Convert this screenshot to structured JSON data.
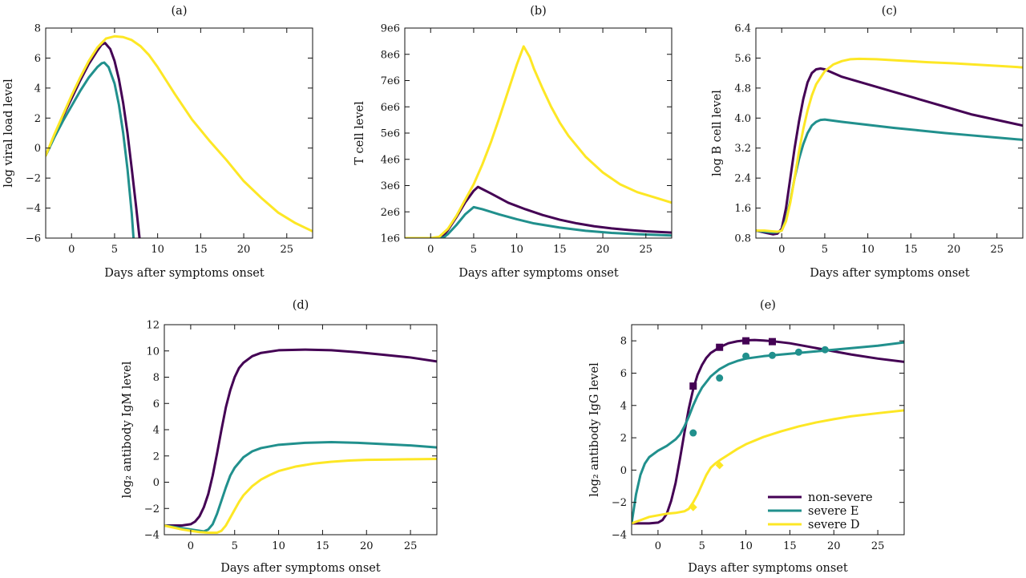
{
  "colors": {
    "non_severe": "#440154",
    "severe_E": "#21908d",
    "severe_D": "#fde725"
  },
  "chart_data": [
    {
      "id": "a",
      "type": "line",
      "title": "(a)",
      "xlabel": "Days after symptoms onset",
      "ylabel": "log viral load level",
      "xlim": [
        -3,
        28
      ],
      "ylim": [
        -6,
        8
      ],
      "xticks": [
        0,
        5,
        10,
        15,
        20,
        25
      ],
      "yticks": [
        -6,
        -4,
        -2,
        0,
        2,
        4,
        6,
        8
      ],
      "ytick_labels": [
        "−6",
        "−4",
        "−2",
        "0",
        "2",
        "4",
        "6",
        "8"
      ],
      "grid": false,
      "series": [
        {
          "key": "non_severe",
          "x": [
            -3,
            -2,
            -1,
            0,
            1,
            2,
            3,
            3.5,
            3.9,
            4.5,
            5,
            5.5,
            6,
            6.5,
            7,
            7.5,
            7.9
          ],
          "y": [
            -0.5,
            0.8,
            2.1,
            3.3,
            4.5,
            5.6,
            6.5,
            6.9,
            7.0,
            6.6,
            5.8,
            4.6,
            3.0,
            1.0,
            -1.4,
            -3.9,
            -6
          ]
        },
        {
          "key": "severe_E",
          "x": [
            -3,
            -2,
            -1,
            0,
            1,
            2,
            3,
            3.5,
            3.8,
            4.3,
            5,
            5.5,
            6,
            6.5,
            7,
            7.2
          ],
          "y": [
            -0.5,
            0.7,
            1.8,
            2.8,
            3.8,
            4.7,
            5.4,
            5.65,
            5.7,
            5.4,
            4.3,
            2.9,
            1.0,
            -1.4,
            -4.4,
            -6
          ]
        },
        {
          "key": "severe_D",
          "x": [
            -3,
            -2,
            -1,
            0,
            1,
            2,
            3,
            4,
            5,
            6,
            7,
            8,
            9,
            10,
            11,
            12,
            14,
            16,
            18,
            20,
            22,
            24,
            26,
            28
          ],
          "y": [
            -0.5,
            0.9,
            2.2,
            3.5,
            4.7,
            5.8,
            6.7,
            7.3,
            7.45,
            7.4,
            7.2,
            6.8,
            6.2,
            5.4,
            4.5,
            3.6,
            1.9,
            0.5,
            -0.8,
            -2.2,
            -3.3,
            -4.3,
            -5.0,
            -5.55
          ]
        }
      ]
    },
    {
      "id": "b",
      "type": "line",
      "title": "(b)",
      "xlabel": "Days after symptoms onset",
      "ylabel": "T cell level",
      "xlim": [
        -3,
        28
      ],
      "ylim": [
        1000000,
        9000000
      ],
      "xticks": [
        0,
        5,
        10,
        15,
        20,
        25
      ],
      "yticks": [
        1000000,
        2000000,
        3000000,
        4000000,
        5000000,
        6000000,
        7000000,
        8000000,
        9000000
      ],
      "ytick_labels": [
        "1e6",
        "2e6",
        "3e6",
        "4e6",
        "5e6",
        "6e6",
        "7e6",
        "8e6",
        "9e6"
      ],
      "grid": false,
      "series": [
        {
          "key": "non_severe",
          "x": [
            -3,
            0,
            1,
            1.5,
            2,
            3,
            4,
            5,
            5.5,
            7,
            9,
            11,
            13,
            15,
            17,
            19,
            21,
            23,
            25,
            28
          ],
          "y": [
            1000000,
            1000000,
            1020000,
            1100000,
            1300000,
            1800000,
            2350000,
            2800000,
            2950000,
            2700000,
            2350000,
            2100000,
            1880000,
            1700000,
            1560000,
            1450000,
            1370000,
            1310000,
            1260000,
            1210000
          ]
        },
        {
          "key": "severe_E",
          "x": [
            -3,
            0,
            1,
            1.5,
            2,
            3,
            4,
            5,
            6,
            8,
            10,
            12,
            15,
            18,
            21,
            24,
            28
          ],
          "y": [
            1000000,
            1000000,
            1000000,
            1020000,
            1150000,
            1500000,
            1900000,
            2180000,
            2100000,
            1900000,
            1720000,
            1560000,
            1400000,
            1280000,
            1200000,
            1150000,
            1100000
          ]
        },
        {
          "key": "severe_D",
          "x": [
            -3,
            0,
            1,
            2,
            3,
            4,
            5,
            6,
            7,
            8,
            9,
            10,
            10.8,
            11.5,
            12,
            13,
            14,
            15,
            16,
            18,
            20,
            22,
            24,
            26,
            28
          ],
          "y": [
            1000000,
            1000000,
            1050000,
            1350000,
            1850000,
            2450000,
            3050000,
            3800000,
            4650000,
            5600000,
            6600000,
            7600000,
            8300000,
            7900000,
            7450000,
            6700000,
            6000000,
            5400000,
            4900000,
            4100000,
            3500000,
            3050000,
            2750000,
            2550000,
            2350000
          ]
        }
      ]
    },
    {
      "id": "c",
      "type": "line",
      "title": "(c)",
      "xlabel": "Days after symptoms onset",
      "ylabel": "log B cell level",
      "xlim": [
        -3,
        28
      ],
      "ylim": [
        0.8,
        6.4
      ],
      "xticks": [
        0,
        5,
        10,
        15,
        20,
        25
      ],
      "yticks": [
        0.8,
        1.6,
        2.4,
        3.2,
        4.0,
        4.8,
        5.6,
        6.4
      ],
      "ytick_labels": [
        "0.8",
        "1.6",
        "2.4",
        "3.2",
        "4.0",
        "4.8",
        "5.6",
        "6.4"
      ],
      "grid": false,
      "series": [
        {
          "key": "non_severe",
          "x": [
            -3,
            -2,
            -1,
            -0.5,
            0,
            0.5,
            1,
            1.5,
            2,
            2.5,
            3,
            3.5,
            4,
            4.5,
            5,
            7,
            10,
            13,
            16,
            19,
            22,
            25,
            28
          ],
          "y": [
            1.0,
            0.95,
            0.9,
            0.92,
            1.05,
            1.6,
            2.4,
            3.2,
            3.9,
            4.5,
            4.95,
            5.2,
            5.3,
            5.32,
            5.3,
            5.1,
            4.9,
            4.7,
            4.5,
            4.3,
            4.1,
            3.95,
            3.8
          ]
        },
        {
          "key": "severe_E",
          "x": [
            -3,
            -2,
            -1,
            -0.5,
            0,
            0.5,
            1,
            1.5,
            2,
            2.5,
            3,
            3.5,
            4,
            4.5,
            5,
            7,
            10,
            13,
            16,
            19,
            22,
            25,
            28
          ],
          "y": [
            1.0,
            0.97,
            0.95,
            0.96,
            1.0,
            1.3,
            1.8,
            2.4,
            2.9,
            3.3,
            3.6,
            3.8,
            3.9,
            3.95,
            3.96,
            3.9,
            3.82,
            3.74,
            3.67,
            3.6,
            3.54,
            3.48,
            3.42
          ]
        },
        {
          "key": "severe_D",
          "x": [
            -3,
            -2,
            -1,
            -0.5,
            0,
            0.5,
            1,
            1.5,
            2,
            2.5,
            3,
            3.5,
            4,
            5,
            6,
            7,
            8,
            9,
            11,
            14,
            17,
            20,
            23,
            26,
            28
          ],
          "y": [
            1.0,
            1.0,
            0.98,
            0.97,
            1.0,
            1.25,
            1.75,
            2.4,
            3.1,
            3.7,
            4.2,
            4.6,
            4.9,
            5.25,
            5.43,
            5.52,
            5.57,
            5.58,
            5.57,
            5.53,
            5.49,
            5.46,
            5.42,
            5.38,
            5.35
          ]
        }
      ]
    },
    {
      "id": "d",
      "type": "line",
      "title": "(d)",
      "xlabel": "Days after symptoms onset",
      "ylabel": "log₂ antibody IgM level",
      "xlim": [
        -3,
        28
      ],
      "ylim": [
        -4,
        12
      ],
      "xticks": [
        0,
        5,
        10,
        15,
        20,
        25
      ],
      "yticks": [
        -4,
        -2,
        0,
        2,
        4,
        6,
        8,
        10,
        12
      ],
      "ytick_labels": [
        "−4",
        "−2",
        "0",
        "2",
        "4",
        "6",
        "8",
        "10",
        "12"
      ],
      "grid": false,
      "series": [
        {
          "key": "non_severe",
          "x": [
            -3,
            -2,
            -1,
            0,
            0.5,
            1,
            1.5,
            2,
            2.5,
            3,
            3.5,
            4,
            4.5,
            5,
            5.5,
            6,
            7,
            8,
            10,
            13,
            16,
            19,
            22,
            25,
            28
          ],
          "y": [
            -3.3,
            -3.3,
            -3.3,
            -3.2,
            -3.0,
            -2.6,
            -1.9,
            -0.9,
            0.5,
            2.2,
            4.0,
            5.7,
            7.0,
            8.0,
            8.7,
            9.1,
            9.6,
            9.85,
            10.05,
            10.1,
            10.05,
            9.9,
            9.7,
            9.5,
            9.2
          ]
        },
        {
          "key": "severe_E",
          "x": [
            -3,
            -2,
            -1,
            0,
            1,
            1.5,
            2,
            2.5,
            3,
            3.5,
            4,
            4.5,
            5,
            6,
            7,
            8,
            10,
            13,
            16,
            19,
            22,
            25,
            28
          ],
          "y": [
            -3.3,
            -3.4,
            -3.5,
            -3.6,
            -3.7,
            -3.75,
            -3.6,
            -3.2,
            -2.4,
            -1.4,
            -0.4,
            0.5,
            1.1,
            1.9,
            2.35,
            2.6,
            2.85,
            3.0,
            3.05,
            3.0,
            2.9,
            2.8,
            2.65
          ]
        },
        {
          "key": "severe_D",
          "x": [
            -3,
            -2,
            -1,
            0,
            1,
            2,
            3,
            3.5,
            4,
            4.5,
            5,
            5.5,
            6,
            7,
            8,
            9,
            10,
            12,
            14,
            16,
            18,
            20,
            22,
            25,
            28
          ],
          "y": [
            -3.3,
            -3.45,
            -3.6,
            -3.7,
            -3.8,
            -3.85,
            -3.85,
            -3.7,
            -3.3,
            -2.7,
            -2.1,
            -1.5,
            -1.0,
            -0.3,
            0.2,
            0.55,
            0.85,
            1.2,
            1.42,
            1.56,
            1.65,
            1.7,
            1.72,
            1.75,
            1.77
          ]
        }
      ]
    },
    {
      "id": "e",
      "type": "line",
      "title": "(e)",
      "xlabel": "Days after symptoms onset",
      "ylabel": "log₂ antibody IgG level",
      "xlim": [
        -3,
        28
      ],
      "ylim": [
        -4,
        9
      ],
      "xticks": [
        0,
        5,
        10,
        15,
        20,
        25
      ],
      "yticks": [
        -4,
        -2,
        0,
        2,
        4,
        6,
        8
      ],
      "ytick_labels": [
        "−4",
        "−2",
        "0",
        "2",
        "4",
        "6",
        "8"
      ],
      "grid": false,
      "legend": "bottom-right",
      "series": [
        {
          "key": "non_severe",
          "name": "non-severe",
          "marker": "square",
          "x": [
            -3,
            -2,
            -1,
            0,
            0.5,
            1,
            1.5,
            2,
            2.5,
            3,
            3.5,
            4,
            4.5,
            5,
            5.5,
            6,
            7,
            8,
            9,
            10,
            11,
            12,
            13,
            15,
            17,
            19,
            22,
            25,
            28
          ],
          "y": [
            -3.3,
            -3.3,
            -3.3,
            -3.25,
            -3.1,
            -2.7,
            -1.9,
            -0.8,
            0.7,
            2.3,
            3.8,
            5.0,
            5.9,
            6.5,
            6.95,
            7.25,
            7.6,
            7.85,
            7.97,
            8.03,
            8.05,
            8.02,
            7.98,
            7.85,
            7.65,
            7.45,
            7.15,
            6.9,
            6.7
          ]
        },
        {
          "key": "severe_E",
          "name": "severe E",
          "marker": "circle",
          "x": [
            -3,
            -2.5,
            -2,
            -1.5,
            -1,
            0,
            1,
            2,
            2.5,
            3,
            3.5,
            4,
            4.5,
            5,
            6,
            7,
            8,
            9,
            10,
            12,
            14,
            16,
            19,
            22,
            25,
            28
          ],
          "y": [
            -3.3,
            -1.5,
            -0.3,
            0.4,
            0.8,
            1.2,
            1.5,
            1.9,
            2.2,
            2.7,
            3.3,
            4.0,
            4.6,
            5.1,
            5.8,
            6.25,
            6.55,
            6.75,
            6.9,
            7.05,
            7.15,
            7.25,
            7.4,
            7.55,
            7.7,
            7.9
          ]
        },
        {
          "key": "severe_D",
          "name": "severe D",
          "marker": "diamond",
          "x": [
            -3,
            -2,
            -1,
            0,
            1,
            2,
            3,
            3.5,
            4,
            4.5,
            5,
            5.5,
            6,
            6.5,
            7,
            8,
            9,
            10,
            12,
            14,
            16,
            18,
            20,
            22,
            25,
            28
          ],
          "y": [
            -3.3,
            -3.1,
            -2.9,
            -2.8,
            -2.7,
            -2.65,
            -2.55,
            -2.4,
            -2.0,
            -1.5,
            -0.9,
            -0.3,
            0.15,
            0.4,
            0.6,
            0.95,
            1.3,
            1.6,
            2.05,
            2.4,
            2.7,
            2.95,
            3.15,
            3.33,
            3.52,
            3.7
          ]
        }
      ],
      "markers": [
        {
          "key": "non_severe",
          "shape": "square",
          "x": [
            4,
            7,
            10,
            13
          ],
          "y": [
            5.2,
            7.6,
            8.0,
            7.95
          ]
        },
        {
          "key": "severe_E",
          "shape": "circle",
          "x": [
            4,
            7,
            10,
            13,
            16,
            19
          ],
          "y": [
            2.3,
            5.7,
            7.05,
            7.1,
            7.3,
            7.45
          ]
        },
        {
          "key": "severe_D",
          "shape": "diamond",
          "x": [
            4,
            7
          ],
          "y": [
            -2.3,
            0.3
          ]
        }
      ]
    }
  ]
}
